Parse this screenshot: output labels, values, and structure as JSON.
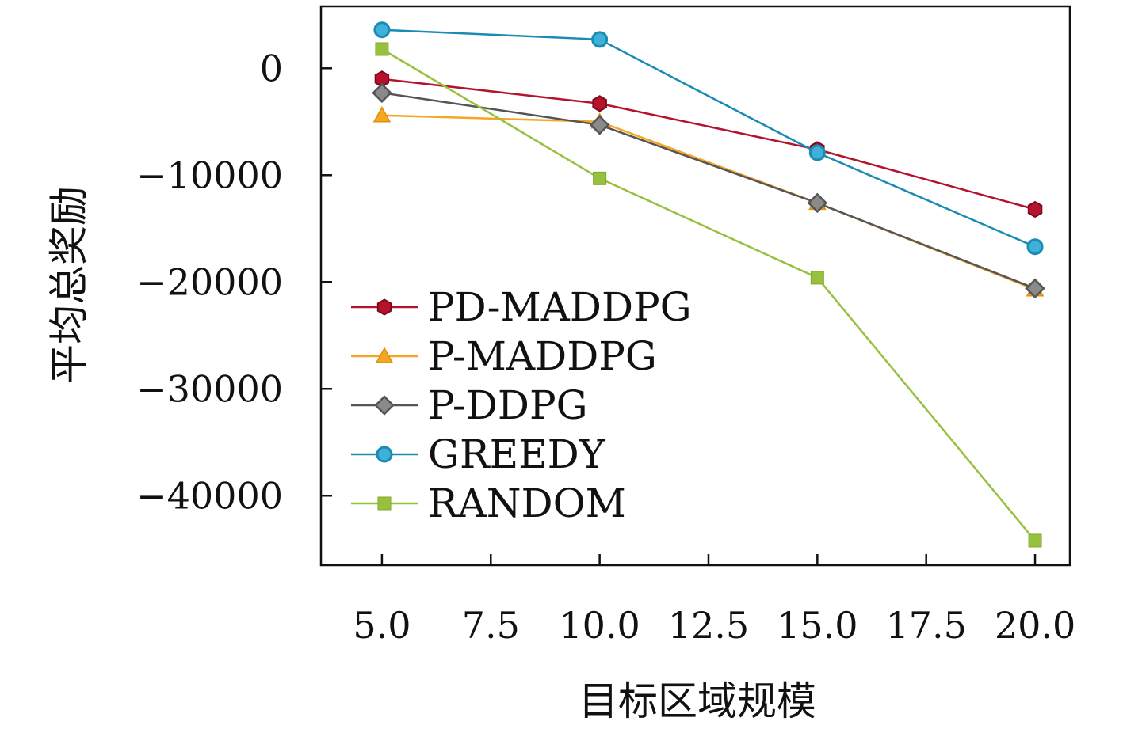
{
  "chart_data": {
    "type": "line",
    "xlabel": "目标区域规模",
    "ylabel": "平均总奖励",
    "x": [
      5,
      10,
      15,
      20
    ],
    "xlim": [
      3.6,
      20.8
    ],
    "ylim": [
      -46500,
      5800
    ],
    "xticks": [
      "5.0",
      "7.5",
      "10.0",
      "12.5",
      "15.0",
      "17.5",
      "20.0"
    ],
    "yticks": [
      "0",
      "−10000",
      "−20000",
      "−30000",
      "−40000"
    ],
    "grid": false,
    "legend_position": "lower-left",
    "series": [
      {
        "name": "PD-MADDPG",
        "values": [
          -1000,
          -3300,
          -7600,
          -13200
        ],
        "color": "#b5132c",
        "marker": "hexagon"
      },
      {
        "name": "P-MADDPG",
        "values": [
          -4400,
          -5000,
          -12600,
          -20700
        ],
        "color": "#f5a623",
        "marker": "triangle"
      },
      {
        "name": "P-DDPG",
        "values": [
          -2300,
          -5300,
          -12600,
          -20600
        ],
        "color": "#555555",
        "marker": "diamond"
      },
      {
        "name": "GREEDY",
        "values": [
          3600,
          2700,
          -7900,
          -16700
        ],
        "color": "#1a8bb3",
        "marker": "circle"
      },
      {
        "name": "RANDOM",
        "values": [
          1800,
          -10300,
          -19600,
          -44200
        ],
        "color": "#97c03f",
        "marker": "square"
      }
    ]
  }
}
